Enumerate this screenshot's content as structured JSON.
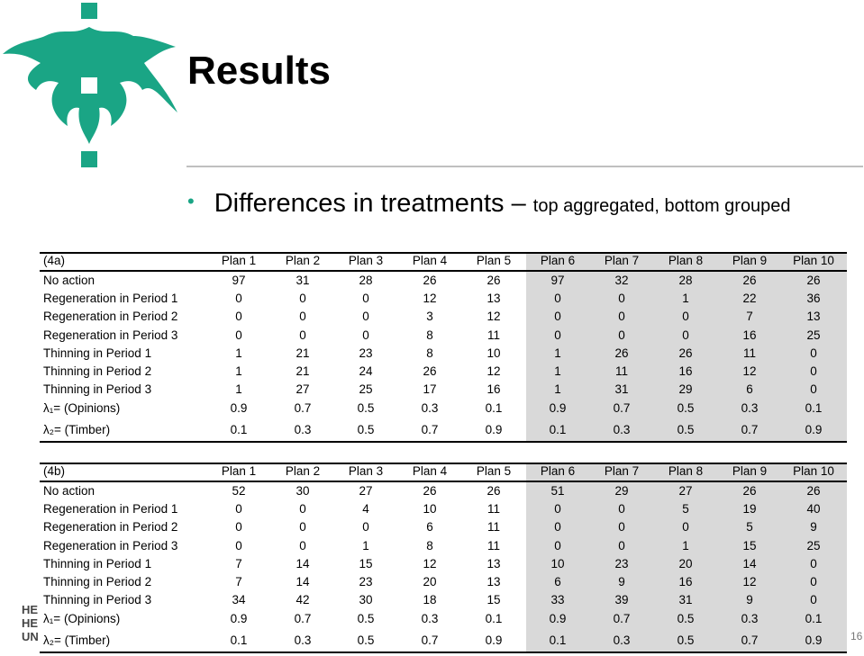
{
  "header": {
    "title": "Results"
  },
  "bullet": {
    "main": "Differences in treatments – ",
    "sub": "top aggregated, bottom grouped"
  },
  "logo_text": [
    "HE",
    "HE",
    "UN"
  ],
  "page_number": "16",
  "tables": [
    {
      "caption": "(4a)",
      "columns": [
        "Plan 1",
        "Plan 2",
        "Plan 3",
        "Plan 4",
        "Plan 5",
        "Plan 6",
        "Plan 7",
        "Plan 8",
        "Plan 9",
        "Plan 10"
      ],
      "rows": [
        {
          "label": "No action",
          "values": [
            97,
            31,
            28,
            26,
            26,
            97,
            32,
            28,
            26,
            26
          ]
        },
        {
          "label": "Regeneration in Period 1",
          "values": [
            0,
            0,
            0,
            12,
            13,
            0,
            0,
            1,
            22,
            36
          ]
        },
        {
          "label": "Regeneration in Period 2",
          "values": [
            0,
            0,
            0,
            3,
            12,
            0,
            0,
            0,
            7,
            13
          ]
        },
        {
          "label": "Regeneration in Period 3",
          "values": [
            0,
            0,
            0,
            8,
            11,
            0,
            0,
            0,
            16,
            25
          ]
        },
        {
          "label": "Thinning in Period 1",
          "values": [
            1,
            21,
            23,
            8,
            10,
            1,
            26,
            26,
            11,
            0
          ]
        },
        {
          "label": "Thinning in Period 2",
          "values": [
            1,
            21,
            24,
            26,
            12,
            1,
            11,
            16,
            12,
            0
          ]
        },
        {
          "label": "Thinning in Period 3",
          "values": [
            1,
            27,
            25,
            17,
            16,
            1,
            31,
            29,
            6,
            0
          ]
        },
        {
          "label": "λ₁= (Opinions)",
          "values": [
            0.9,
            0.7,
            0.5,
            0.3,
            0.1,
            0.9,
            0.7,
            0.5,
            0.3,
            0.1
          ]
        },
        {
          "label": "λ₂= (Timber)",
          "values": [
            0.1,
            0.3,
            0.5,
            0.7,
            0.9,
            0.1,
            0.3,
            0.5,
            0.7,
            0.9
          ]
        }
      ]
    },
    {
      "caption": "(4b)",
      "columns": [
        "Plan 1",
        "Plan 2",
        "Plan 3",
        "Plan 4",
        "Plan 5",
        "Plan 6",
        "Plan 7",
        "Plan 8",
        "Plan 9",
        "Plan 10"
      ],
      "rows": [
        {
          "label": "No action",
          "values": [
            52,
            30,
            27,
            26,
            26,
            51,
            29,
            27,
            26,
            26
          ]
        },
        {
          "label": "Regeneration in Period 1",
          "values": [
            0,
            0,
            4,
            10,
            11,
            0,
            0,
            5,
            19,
            40
          ]
        },
        {
          "label": "Regeneration in Period 2",
          "values": [
            0,
            0,
            0,
            6,
            11,
            0,
            0,
            0,
            5,
            9
          ]
        },
        {
          "label": "Regeneration in Period 3",
          "values": [
            0,
            0,
            1,
            8,
            11,
            0,
            0,
            1,
            15,
            25
          ]
        },
        {
          "label": "Thinning in Period 1",
          "values": [
            7,
            14,
            15,
            12,
            13,
            10,
            23,
            20,
            14,
            0
          ]
        },
        {
          "label": "Thinning in Period 2",
          "values": [
            7,
            14,
            23,
            20,
            13,
            6,
            9,
            16,
            12,
            0
          ]
        },
        {
          "label": "Thinning in Period 3",
          "values": [
            34,
            42,
            30,
            18,
            15,
            33,
            39,
            31,
            9,
            0
          ]
        },
        {
          "label": "λ₁= (Opinions)",
          "values": [
            0.9,
            0.7,
            0.5,
            0.3,
            0.1,
            0.9,
            0.7,
            0.5,
            0.3,
            0.1
          ]
        },
        {
          "label": "λ₂= (Timber)",
          "values": [
            0.1,
            0.3,
            0.5,
            0.7,
            0.9,
            0.1,
            0.3,
            0.5,
            0.7,
            0.9
          ]
        }
      ]
    }
  ]
}
